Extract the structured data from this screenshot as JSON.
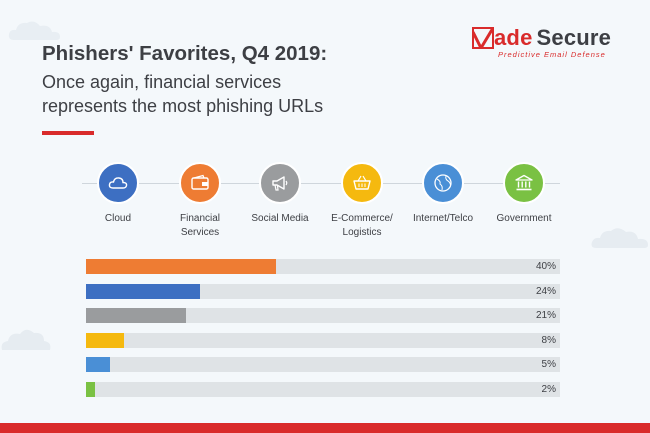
{
  "header": {
    "title": "Phishers' Favorites, Q4 2019:",
    "subtitle_line1": "Once again, financial services",
    "subtitle_line2": "represents the most phishing URLs"
  },
  "logo": {
    "brand_v": "V",
    "brand_ade": "ade",
    "brand_secure": "Secure",
    "tagline": "Predictive Email Defense",
    "brand_color": "#d92b2b"
  },
  "categories": [
    {
      "line1": "Cloud",
      "line2": "",
      "icon": "cloud-icon",
      "color": "#3d6fc2"
    },
    {
      "line1": "Financial",
      "line2": "Services",
      "icon": "wallet-icon",
      "color": "#ee7c33"
    },
    {
      "line1": "Social Media",
      "line2": "",
      "icon": "megaphone-icon",
      "color": "#9a9c9e"
    },
    {
      "line1": "E-Commerce/",
      "line2": "Logistics",
      "icon": "basket-icon",
      "color": "#f5b90f"
    },
    {
      "line1": "Internet/Telco",
      "line2": "",
      "icon": "globe-icon",
      "color": "#4a8fd6"
    },
    {
      "line1": "Government",
      "line2": "",
      "icon": "bank-icon",
      "color": "#7ac143"
    }
  ],
  "chart_data": {
    "type": "bar",
    "orientation": "horizontal",
    "title": "Phishers' Favorites, Q4 2019",
    "categories": [
      "Financial Services",
      "Cloud",
      "Social Media",
      "E-Commerce/Logistics",
      "Internet/Telco",
      "Government"
    ],
    "values": [
      40,
      24,
      21,
      8,
      5,
      2
    ],
    "labels": [
      "40%",
      "24%",
      "21%",
      "8%",
      "5%",
      "2%"
    ],
    "colors": [
      "#ee7c33",
      "#3d6fc2",
      "#9a9c9e",
      "#f5b90f",
      "#4a8fd6",
      "#7ac143"
    ],
    "xlim": [
      0,
      100
    ],
    "unit": "%"
  }
}
